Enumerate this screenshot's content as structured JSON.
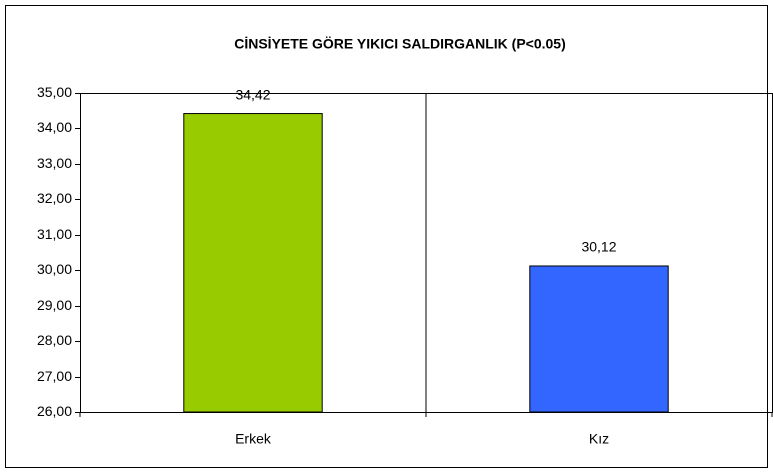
{
  "chart_data": {
    "type": "bar",
    "title": "CİNSİYETE GÖRE YIKICI SALDIRGANLIK (P<0.05)",
    "categories": [
      "Erkek",
      "Kız"
    ],
    "values": [
      34.42,
      30.12
    ],
    "value_labels": [
      "34,42",
      "30,12"
    ],
    "colors": [
      "#99cc00",
      "#3366ff"
    ],
    "ylim": [
      26,
      35
    ],
    "yticks": [
      {
        "value": 26,
        "label": "26,00"
      },
      {
        "value": 27,
        "label": "27,00"
      },
      {
        "value": 28,
        "label": "28,00"
      },
      {
        "value": 29,
        "label": "29,00"
      },
      {
        "value": 30,
        "label": "30,00"
      },
      {
        "value": 31,
        "label": "31,00"
      },
      {
        "value": 32,
        "label": "32,00"
      },
      {
        "value": 33,
        "label": "33,00"
      },
      {
        "value": 34,
        "label": "34,00"
      },
      {
        "value": 35,
        "label": "35,00"
      }
    ],
    "grid": false
  }
}
